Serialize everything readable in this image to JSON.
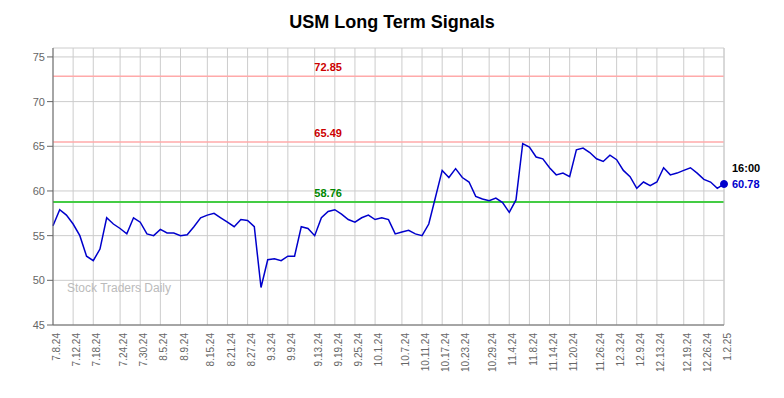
{
  "chart_data": {
    "type": "line",
    "title": "USM Long Term Signals",
    "color": "#0000cc",
    "ylim": [
      45,
      76
    ],
    "yticks": [
      45,
      50,
      55,
      60,
      65,
      70,
      75
    ],
    "grid": true,
    "categories": [
      "7.8.24",
      null,
      null,
      "7.12.24",
      null,
      null,
      "7.18.24",
      null,
      null,
      null,
      "7.24.24",
      null,
      null,
      "7.30.24",
      null,
      null,
      "8.5.24",
      null,
      null,
      "8.9.24",
      null,
      null,
      null,
      "8.15.24",
      null,
      null,
      "8.21.24",
      null,
      null,
      "8.27.24",
      null,
      null,
      "9.3.24",
      null,
      null,
      "9.9.24",
      null,
      null,
      null,
      "9.13.24",
      null,
      null,
      "9.19.24",
      null,
      null,
      "9.25.24",
      null,
      null,
      "10.1.24",
      null,
      null,
      null,
      "10.7.24",
      null,
      null,
      "10.11.24",
      null,
      null,
      "10.17.24",
      null,
      null,
      "10.23.24",
      null,
      null,
      null,
      "10.29.24",
      null,
      null,
      "11.4.24",
      null,
      null,
      "11.8.24",
      null,
      null,
      "11.14.24",
      null,
      null,
      "11.20.24",
      null,
      null,
      null,
      "11.26.24",
      null,
      null,
      "12.3.24",
      null,
      null,
      "12.9.24",
      null,
      null,
      "12.13.24",
      null,
      null,
      null,
      "12.19.24",
      null,
      null,
      "12.26.24",
      null,
      null,
      "1.2.25"
    ],
    "values": [
      56.1,
      57.9,
      57.3,
      56.3,
      55.0,
      52.7,
      52.2,
      53.5,
      57.0,
      56.3,
      55.8,
      55.2,
      57.0,
      56.5,
      55.2,
      55.0,
      55.7,
      55.3,
      55.3,
      55.0,
      55.1,
      56.0,
      57.0,
      57.3,
      57.5,
      57.0,
      56.5,
      56.0,
      56.8,
      56.7,
      56.0,
      49.2,
      52.3,
      52.4,
      52.2,
      52.7,
      52.7,
      56.0,
      55.8,
      55.0,
      57.0,
      57.7,
      57.9,
      57.4,
      56.8,
      56.5,
      57.0,
      57.3,
      56.8,
      57.0,
      56.8,
      55.2,
      55.4,
      55.6,
      55.2,
      55.0,
      56.3,
      59.3,
      62.3,
      61.5,
      62.5,
      61.5,
      61.0,
      59.4,
      59.1,
      58.9,
      59.2,
      58.7,
      57.6,
      59.0,
      65.3,
      64.9,
      63.8,
      63.6,
      62.6,
      61.8,
      62.0,
      61.6,
      64.6,
      64.8,
      64.3,
      63.6,
      63.3,
      64.0,
      63.5,
      62.3,
      61.6,
      60.3,
      61.0,
      60.6,
      61.0,
      62.6,
      61.8,
      62.0,
      62.3,
      62.6,
      62.0,
      61.3,
      61.0,
      60.3,
      60.78
    ],
    "reference_lines": [
      {
        "value": 72.85,
        "color": "#ffaaaa",
        "label_color": "#cc0000"
      },
      {
        "value": 65.49,
        "color": "#ffaaaa",
        "label_color": "#cc0000"
      },
      {
        "value": 58.76,
        "color": "#44cc44",
        "label_color": "#008800"
      }
    ],
    "last_label": "16:00",
    "watermark": "Stock Traders Daily",
    "watermark_color": "#bbbbbb"
  }
}
